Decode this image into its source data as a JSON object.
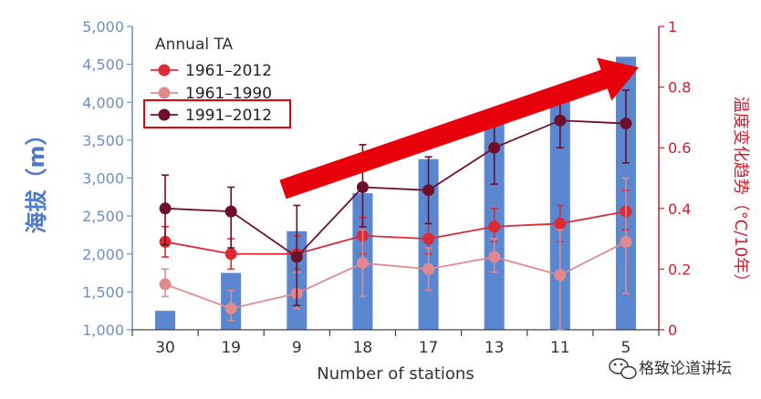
{
  "chart_data": {
    "type": "bar+line",
    "xlabel": "Number of stations",
    "ylabel_left": "海拔（m）",
    "ylabel_right": "温度变化趋势（°C/10年）",
    "categories": [
      "30",
      "19",
      "9",
      "18",
      "17",
      "13",
      "11",
      "5"
    ],
    "left_axis": {
      "ylim": [
        1000,
        5000
      ],
      "ticks": [
        "1,000",
        "1,500",
        "2,000",
        "2,500",
        "3,000",
        "3,500",
        "4,000",
        "4,500",
        "5,000"
      ]
    },
    "right_axis": {
      "ylim": [
        0,
        1
      ],
      "ticks": [
        "0",
        "0.2",
        "0.4",
        "0.6",
        "0.8",
        "1"
      ]
    },
    "bars": {
      "name": "Elevation",
      "color": "#5b86d0",
      "values": [
        1250,
        1750,
        2300,
        2800,
        3250,
        3800,
        4150,
        4600
      ]
    },
    "legend_title": "Annual TA",
    "series": [
      {
        "name": "1961–2012",
        "color": "#dc2a35",
        "values": [
          0.29,
          0.25,
          0.25,
          0.31,
          0.3,
          0.34,
          0.35,
          0.39
        ],
        "err_low": [
          0.24,
          0.2,
          0.2,
          0.25,
          0.25,
          0.29,
          0.29,
          0.33
        ],
        "err_high": [
          0.34,
          0.3,
          0.31,
          0.37,
          0.35,
          0.4,
          0.41,
          0.46
        ]
      },
      {
        "name": "1961–1990",
        "color": "#e08a90",
        "values": [
          0.15,
          0.07,
          0.12,
          0.22,
          0.2,
          0.24,
          0.18,
          0.29
        ],
        "err_low": [
          0.11,
          0.03,
          0.07,
          0.11,
          0.13,
          0.19,
          0.0,
          0.12
        ],
        "err_high": [
          0.2,
          0.13,
          0.19,
          0.33,
          0.27,
          0.3,
          0.33,
          0.5
        ]
      },
      {
        "name": "1991–2012",
        "color": "#6e0f2c",
        "values": [
          0.4,
          0.39,
          0.24,
          0.47,
          0.46,
          0.6,
          0.69,
          0.68
        ],
        "err_low": [
          0.28,
          0.27,
          0.08,
          0.34,
          0.35,
          0.48,
          0.6,
          0.55
        ],
        "err_high": [
          0.51,
          0.47,
          0.41,
          0.61,
          0.57,
          0.7,
          0.78,
          0.79
        ]
      }
    ],
    "highlighted_legend_entry": "1991–2012",
    "highlight_color": "#e8000b",
    "annotation": "upward red arrow showing increasing trend"
  },
  "watermark": "格致论道讲坛"
}
